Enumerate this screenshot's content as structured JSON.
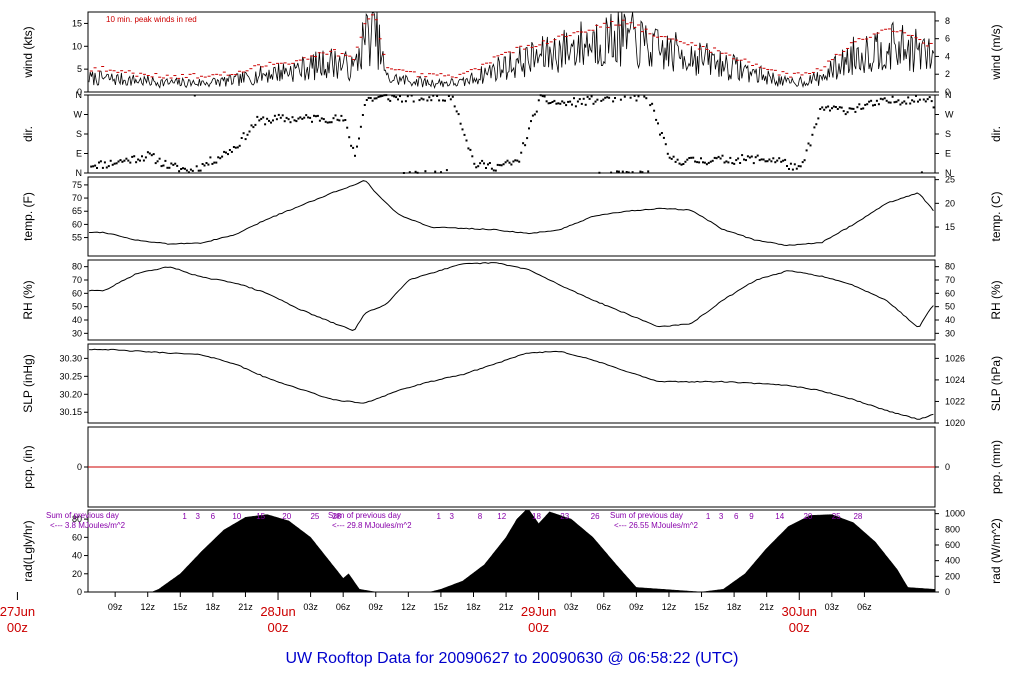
{
  "footer": {
    "prefix": "UW Rooftop Data for",
    "start": "20090627",
    "to": "to",
    "end": "20090630",
    "at": "@",
    "time": "06:58:22",
    "zone": "(UTC)"
  },
  "colors": {
    "peak": "#cc0000",
    "zero_line": "#cc0000",
    "annotation": "#8800aa",
    "date": "#cc0000",
    "trace": "#000000"
  },
  "chart_data": [
    {
      "id": "wind",
      "type": "line",
      "ylabel_left": "wind (kts)",
      "ylabel_right": "wind (m/s)",
      "ylim": [
        0,
        17.5
      ],
      "yticks_left": [
        0,
        5,
        10,
        15
      ],
      "yticks_right": [
        "0",
        "2",
        "4",
        "6",
        "8"
      ],
      "yticks_right_values": [
        0,
        3.89,
        7.78,
        11.66,
        15.55
      ],
      "legend": "10 min. peak winds in red",
      "x": [
        0,
        3,
        6,
        9,
        12,
        15,
        18,
        21,
        22,
        23,
        24,
        25,
        26,
        28,
        30,
        33,
        36,
        39,
        42,
        45,
        48,
        51,
        54,
        57,
        60,
        63,
        66,
        69,
        72,
        75,
        78
      ],
      "values": [
        3,
        2.5,
        2,
        2,
        2.5,
        4,
        5,
        6.5,
        6,
        5,
        12,
        13,
        3,
        2.5,
        2,
        2,
        5,
        7,
        9,
        11,
        12,
        9,
        8,
        6,
        4,
        2,
        3,
        8,
        10,
        9,
        5
      ],
      "peak_values": [
        5,
        4,
        3.5,
        3.5,
        4,
        6,
        7,
        9,
        8,
        7,
        15,
        17,
        5,
        4,
        3.5,
        3.5,
        7.5,
        10,
        12,
        14,
        15.5,
        12,
        10.5,
        8.5,
        6,
        3.5,
        5,
        11,
        14,
        12,
        7
      ]
    },
    {
      "id": "dir",
      "type": "scatter",
      "ylabel_left": "dir.",
      "ylabel_right": "dir.",
      "ylim": [
        0,
        360
      ],
      "yticks": [
        "N",
        "E",
        "S",
        "W",
        "N"
      ],
      "yticks_values": [
        0,
        90,
        180,
        270,
        360
      ],
      "x": [
        0,
        2,
        4,
        6,
        8,
        10,
        12,
        14,
        16,
        18,
        20,
        22,
        23,
        24,
        26,
        28,
        30,
        32,
        34,
        36,
        38,
        40,
        42,
        44,
        46,
        48,
        50,
        52,
        54,
        56,
        58,
        60,
        62,
        64,
        66,
        68,
        70,
        72,
        74,
        76,
        78
      ],
      "values": [
        40,
        60,
        80,
        30,
        10,
        60,
        120,
        240,
        250,
        250,
        255,
        245,
        80,
        340,
        350,
        345,
        350,
        355,
        40,
        30,
        50,
        340,
        320,
        330,
        345,
        350,
        355,
        60,
        55,
        60,
        62,
        65,
        60,
        10,
        300,
        290,
        310,
        330,
        340,
        345,
        80
      ]
    },
    {
      "id": "temp",
      "type": "line",
      "ylabel_left": "temp. (F)",
      "ylabel_right": "temp. (C)",
      "ylim": [
        48,
        78
      ],
      "yticks_left": [
        55,
        60,
        65,
        70,
        75
      ],
      "yticks_right": [
        "15",
        "20",
        "25"
      ],
      "yticks_right_values": [
        59,
        68,
        77
      ],
      "x": [
        0,
        3,
        6,
        9,
        12,
        15,
        18,
        21,
        23,
        24,
        25,
        27,
        30,
        33,
        36,
        39,
        42,
        45,
        48,
        51,
        54,
        57,
        60,
        63,
        66,
        69,
        72,
        75,
        78
      ],
      "values": [
        57,
        54,
        52.5,
        53,
        56,
        62,
        67,
        72,
        75,
        77,
        72,
        64,
        59,
        58.5,
        58,
        56.5,
        58,
        63,
        65,
        66,
        65.5,
        58,
        54,
        52,
        53,
        60,
        68,
        72,
        57
      ]
    },
    {
      "id": "rh",
      "type": "line",
      "ylabel_left": "RH (%)",
      "ylabel_right": "RH (%)",
      "ylim": [
        25,
        85
      ],
      "yticks_left": [
        30,
        40,
        50,
        60,
        70,
        80
      ],
      "yticks_right": [
        "30",
        "40",
        "50",
        "60",
        "70",
        "80"
      ],
      "yticks_right_values": [
        30,
        40,
        50,
        60,
        70,
        80
      ],
      "x": [
        0,
        3,
        6,
        9,
        12,
        15,
        18,
        21,
        23,
        24,
        26,
        28,
        30,
        33,
        36,
        39,
        42,
        45,
        48,
        51,
        54,
        57,
        60,
        63,
        66,
        69,
        72,
        75,
        76,
        78
      ],
      "values": [
        62,
        75,
        80,
        72,
        68,
        60,
        48,
        38,
        32,
        45,
        52,
        70,
        75,
        82,
        83,
        78,
        66,
        55,
        45,
        35,
        37,
        55,
        70,
        77,
        73,
        66,
        55,
        34,
        48,
        65
      ]
    },
    {
      "id": "slp",
      "type": "line",
      "ylabel_left": "SLP (inHg)",
      "ylabel_right": "SLP (hPa)",
      "ylim": [
        30.12,
        30.34
      ],
      "yticks_left": [
        "30.15",
        "30.20",
        "30.25",
        "30.30"
      ],
      "yticks_left_values": [
        30.15,
        30.2,
        30.25,
        30.3
      ],
      "yticks_right": [
        "1020",
        "1022",
        "1024",
        "1026"
      ],
      "yticks_right_values": [
        30.12,
        30.18,
        30.24,
        30.3
      ],
      "x": [
        0,
        3,
        6,
        9,
        12,
        15,
        18,
        21,
        24,
        27,
        30,
        33,
        36,
        39,
        42,
        45,
        48,
        51,
        54,
        57,
        60,
        63,
        66,
        69,
        72,
        75,
        78
      ],
      "values": [
        30.325,
        30.32,
        30.315,
        30.31,
        30.285,
        30.245,
        30.215,
        30.185,
        30.175,
        30.21,
        30.235,
        30.255,
        30.285,
        30.315,
        30.32,
        30.295,
        30.265,
        30.235,
        30.235,
        30.235,
        30.23,
        30.225,
        30.21,
        30.185,
        30.155,
        30.13,
        30.16
      ]
    },
    {
      "id": "pcp",
      "type": "line",
      "ylabel_left": "pcp. (in)",
      "ylabel_right": "pcp. (mm)",
      "ylim": [
        -1,
        1
      ],
      "yticks_left": [
        0
      ],
      "yticks_right": [
        "0"
      ],
      "yticks_right_values": [
        0
      ],
      "x": [
        0,
        78
      ],
      "values": [
        0,
        0
      ]
    },
    {
      "id": "rad",
      "type": "area",
      "ylabel_left": "rad(Lgly/hr)",
      "ylabel_right": "rad (W/m^2)",
      "ylim": [
        0,
        90
      ],
      "yticks_left": [
        0,
        20,
        40,
        60,
        80
      ],
      "yticks_right": [
        "0",
        "200",
        "400",
        "600",
        "800",
        "1000"
      ],
      "yticks_right_values": [
        0,
        17.2,
        34.4,
        51.6,
        68.8,
        86.0
      ],
      "x": [
        0,
        4.4,
        5,
        7,
        9,
        11,
        13,
        15,
        17,
        19,
        21,
        22,
        22.5,
        23.5,
        25,
        30,
        31,
        33,
        35,
        37,
        38,
        39,
        40,
        41,
        43,
        45,
        47,
        49,
        55,
        57,
        59,
        61,
        63,
        65,
        67,
        69,
        71,
        73,
        74,
        80
      ],
      "values": [
        0,
        0,
        3,
        20,
        45,
        68,
        82,
        85,
        78,
        60,
        30,
        15,
        20,
        3,
        0,
        0,
        3,
        12,
        30,
        60,
        80,
        92,
        75,
        88,
        80,
        60,
        32,
        5,
        0,
        3,
        20,
        48,
        72,
        84,
        85,
        76,
        55,
        25,
        5,
        0
      ],
      "annotations": [
        {
          "title": "Sum of previous day",
          "text": "<--- 3.8 MJoules/m^2"
        },
        {
          "title": "Sum of previous day",
          "text": "<--- 29.8 MJoules/m^2"
        },
        {
          "title": "Sum of previous day",
          "text": "<--- 26.55 MJoules/m^2"
        }
      ],
      "hour_labels": [
        [
          "1",
          "3",
          "6",
          "10",
          "15",
          "20",
          "25",
          "28"
        ],
        [
          "1",
          "3",
          "8",
          "12",
          "18",
          "23",
          "26"
        ],
        [
          "1",
          "3",
          "6",
          "9",
          "14",
          "20",
          "25",
          "28"
        ]
      ],
      "hour_label_hours": [
        [
          7.4,
          8.6,
          10.0,
          12.2,
          14.4,
          16.8,
          19.4,
          21.4
        ],
        [
          30.8,
          32.0,
          34.6,
          36.6,
          39.8,
          42.4,
          45.2
        ],
        [
          55.6,
          56.8,
          58.2,
          59.6,
          62.2,
          64.8,
          67.4,
          69.4
        ]
      ]
    }
  ],
  "time_axis": {
    "hour_ticks": [
      "09z",
      "12z",
      "15z",
      "18z",
      "21z",
      "03z",
      "06z",
      "09z",
      "12z",
      "15z",
      "18z",
      "21z",
      "03z",
      "06z",
      "09z",
      "12z",
      "15z",
      "18z",
      "21z",
      "03z",
      "06z"
    ],
    "hour_tick_values": [
      1,
      4,
      7,
      10,
      13,
      19,
      22,
      25,
      28,
      31,
      34,
      37,
      43,
      46,
      49,
      52,
      55,
      58,
      61,
      67,
      70
    ],
    "days": [
      {
        "label": "27Jun",
        "sub": "00z",
        "hour": -8
      },
      {
        "label": "28Jun",
        "sub": "00z",
        "hour": 16
      },
      {
        "label": "29Jun",
        "sub": "00z",
        "hour": 40
      },
      {
        "label": "30Jun",
        "sub": "00z",
        "hour": 64
      }
    ]
  }
}
